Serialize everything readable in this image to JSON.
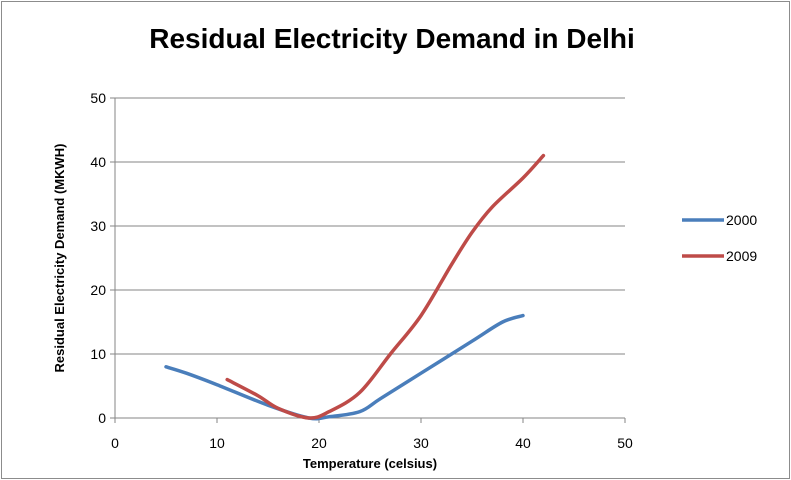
{
  "chart_data": {
    "type": "line",
    "title": "Residual Electricity Demand in Delhi",
    "xlabel": "Temperature (celsius)",
    "ylabel": "Residual Electricity Demand (MKWH)",
    "xlim": [
      0,
      50
    ],
    "ylim": [
      0,
      50
    ],
    "x_ticks": [
      "0",
      "10",
      "20",
      "30",
      "40",
      "50"
    ],
    "y_ticks": [
      "0",
      "10",
      "20",
      "30",
      "40",
      "50"
    ],
    "grid": "horizontal",
    "legend_position": "right",
    "series": [
      {
        "name": "2000",
        "color": "#4a7ebb",
        "points": [
          [
            5,
            8
          ],
          [
            7,
            7
          ],
          [
            10,
            5.2
          ],
          [
            15,
            2
          ],
          [
            19,
            0
          ],
          [
            21,
            0.2
          ],
          [
            24,
            1
          ],
          [
            26,
            3
          ],
          [
            30,
            7
          ],
          [
            35,
            12
          ],
          [
            38,
            15
          ],
          [
            40,
            16
          ]
        ]
      },
      {
        "name": "2009",
        "color": "#be4b48",
        "points": [
          [
            11,
            6
          ],
          [
            14,
            3.5
          ],
          [
            16,
            1.5
          ],
          [
            19,
            0
          ],
          [
            21,
            1
          ],
          [
            24,
            4
          ],
          [
            27,
            10
          ],
          [
            30,
            16
          ],
          [
            33,
            24
          ],
          [
            35,
            29
          ],
          [
            37,
            33
          ],
          [
            40,
            37.5
          ],
          [
            42,
            41
          ]
        ]
      }
    ]
  }
}
